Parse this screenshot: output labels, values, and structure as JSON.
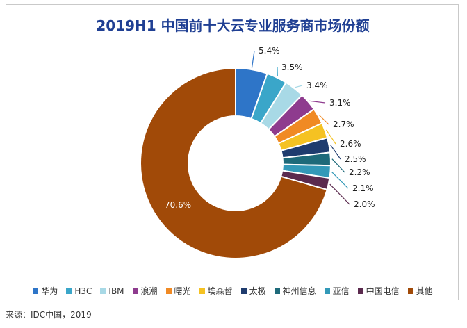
{
  "chart_data": {
    "type": "pie",
    "title": "2019H1 中国前十大云专业服务商市场份额",
    "categories": [
      "华为",
      "H3C",
      "IBM",
      "浪潮",
      "曙光",
      "埃森哲",
      "太极",
      "神州信息",
      "亚信",
      "中国电信",
      "其他"
    ],
    "values": [
      5.4,
      3.5,
      3.4,
      3.1,
      2.7,
      2.6,
      2.5,
      2.2,
      2.1,
      2.0,
      70.6
    ],
    "data_labels": [
      "5.4%",
      "3.5%",
      "3.4%",
      "3.1%",
      "2.7%",
      "2.6%",
      "2.5%",
      "2.2%",
      "2.1%",
      "2.0%",
      "70.6%"
    ],
    "colors": [
      "#2e75c8",
      "#3aa6c9",
      "#a8d9e6",
      "#8e3b8e",
      "#f08a24",
      "#f5c222",
      "#1f3c6e",
      "#1e6a7a",
      "#3399b8",
      "#5b2a4e",
      "#a14a08"
    ],
    "donut": true,
    "legend_position": "bottom"
  },
  "source": "来源：IDC中国，2019"
}
